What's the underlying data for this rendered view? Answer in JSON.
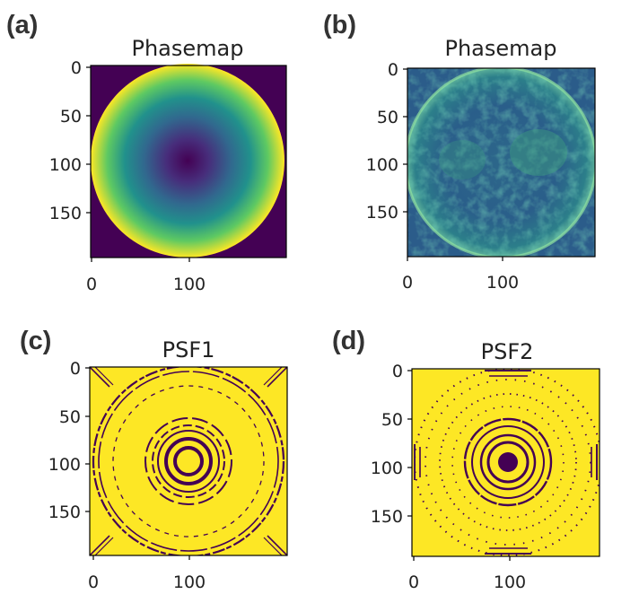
{
  "panels": [
    {
      "id": "a",
      "letter": "(a)",
      "title": "Phasemap",
      "kind": "phase-smooth",
      "y_ticks": [
        "0",
        "50",
        "100",
        "150"
      ],
      "x_ticks": [
        "0",
        "100"
      ]
    },
    {
      "id": "b",
      "letter": "(b)",
      "title": "Phasemap",
      "kind": "phase-noisy",
      "y_ticks": [
        "0",
        "50",
        "100",
        "150"
      ],
      "x_ticks": [
        "0",
        "100"
      ]
    },
    {
      "id": "c",
      "letter": "(c)",
      "title": "PSF1",
      "kind": "psf-rings",
      "y_ticks": [
        "0",
        "50",
        "100",
        "150"
      ],
      "x_ticks": [
        "0",
        "100"
      ]
    },
    {
      "id": "d",
      "letter": "(d)",
      "title": "PSF2",
      "kind": "psf-dots",
      "y_ticks": [
        "0",
        "50",
        "100",
        "150"
      ],
      "x_ticks": [
        "0",
        "100"
      ]
    }
  ],
  "colors": {
    "viridis_dark": "#440154",
    "viridis_blue": "#31688e",
    "viridis_teal": "#21918c",
    "viridis_green": "#5ec962",
    "viridis_yellow": "#fde725",
    "psf_background": "#fde725",
    "psf_marks": "#440154"
  }
}
